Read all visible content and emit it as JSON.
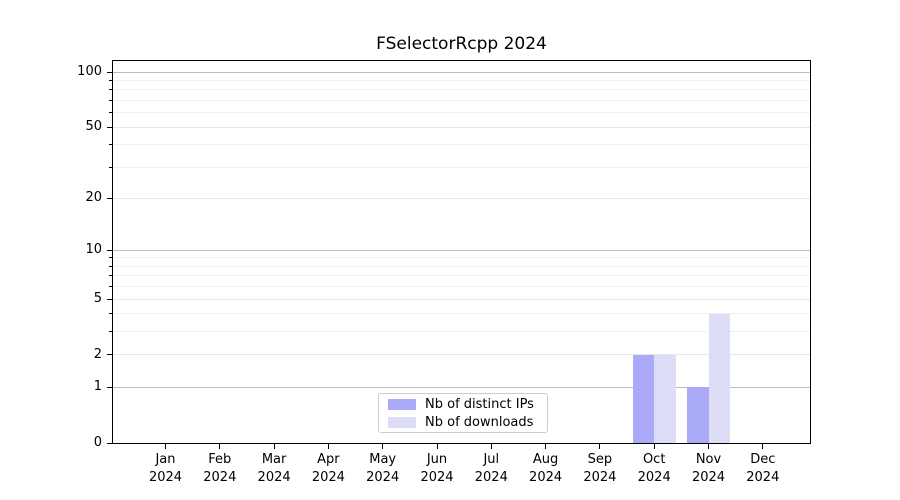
{
  "figure": {
    "background": "#ffffff"
  },
  "chart_data": {
    "type": "bar",
    "title": "FSelectorRcpp 2024",
    "xlabel": "",
    "ylabel": "",
    "categories": [
      {
        "month": "Jan",
        "year": "2024"
      },
      {
        "month": "Feb",
        "year": "2024"
      },
      {
        "month": "Mar",
        "year": "2024"
      },
      {
        "month": "Apr",
        "year": "2024"
      },
      {
        "month": "May",
        "year": "2024"
      },
      {
        "month": "Jun",
        "year": "2024"
      },
      {
        "month": "Jul",
        "year": "2024"
      },
      {
        "month": "Aug",
        "year": "2024"
      },
      {
        "month": "Sep",
        "year": "2024"
      },
      {
        "month": "Oct",
        "year": "2024"
      },
      {
        "month": "Nov",
        "year": "2024"
      },
      {
        "month": "Dec",
        "year": "2024"
      }
    ],
    "series": [
      {
        "name": "Nb of distinct IPs",
        "color": "#aaaaf8",
        "values": [
          0,
          0,
          0,
          0,
          0,
          0,
          0,
          0,
          0,
          2,
          1,
          0
        ]
      },
      {
        "name": "Nb of downloads",
        "color": "#ddddf8",
        "values": [
          0,
          0,
          0,
          0,
          0,
          0,
          0,
          0,
          0,
          2,
          4,
          0
        ]
      }
    ],
    "y_axis": {
      "scale": "log1p",
      "ylim": [
        0,
        115
      ],
      "ticks": [
        0,
        1,
        2,
        5,
        10,
        20,
        50,
        100
      ],
      "emphasized_ticks": [
        1,
        10,
        100
      ],
      "minor_gridlines": [
        3,
        4,
        6,
        7,
        8,
        9,
        30,
        40,
        60,
        70,
        80,
        90
      ]
    },
    "legend": {
      "position": "lower center"
    },
    "grid": "horizontal only",
    "colors": {
      "spine": "#000000",
      "major_grid": "#bdbdbd",
      "mid_grid": "#e7e7e7",
      "minor_grid": "#f0f0f0",
      "tick": "#000000",
      "text": "#000000",
      "legend_border": "#cccccc"
    }
  }
}
